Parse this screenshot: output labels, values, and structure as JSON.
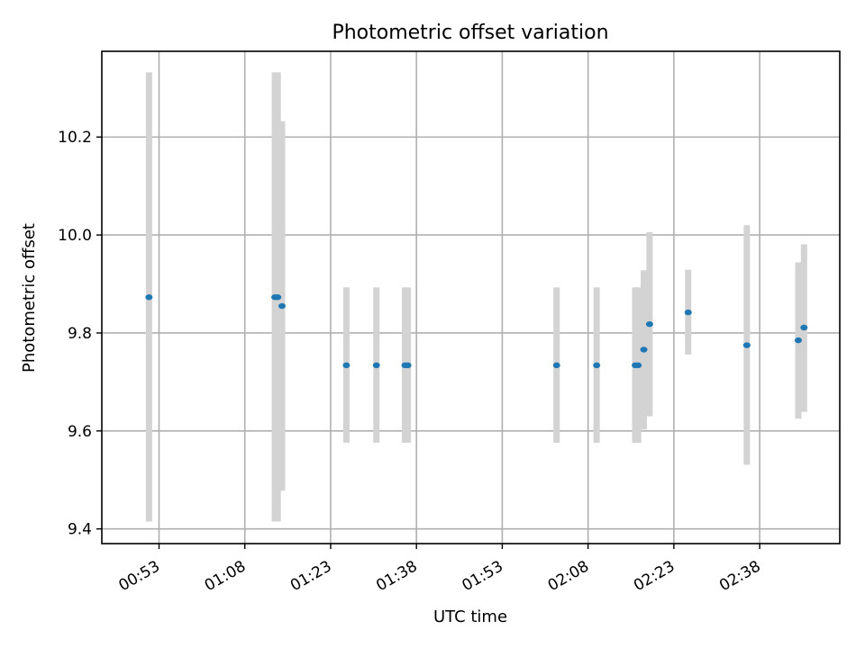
{
  "chart_data": {
    "type": "scatter",
    "title": "Photometric offset variation",
    "xlabel": "UTC time",
    "ylabel": "Photometric offset",
    "xlim": [
      "00:43",
      "02:52"
    ],
    "ylim": [
      9.37,
      10.375
    ],
    "grid": true,
    "x_ticks": [
      "00:53",
      "01:08",
      "01:23",
      "01:38",
      "01:53",
      "02:08",
      "02:23",
      "02:38"
    ],
    "y_ticks": [
      9.4,
      9.6,
      9.8,
      10.0,
      10.2
    ],
    "y_tick_labels": [
      "9.4",
      "9.6",
      "9.8",
      "10.0",
      "10.2"
    ],
    "points": [
      {
        "x": "00:51:15",
        "y": 9.873,
        "ylow": 9.415,
        "yhigh": 10.332
      },
      {
        "x": "01:13:15",
        "y": 9.873,
        "ylow": 9.415,
        "yhigh": 10.332
      },
      {
        "x": "01:13:45",
        "y": 9.873,
        "ylow": 9.415,
        "yhigh": 10.332
      },
      {
        "x": "01:14:30",
        "y": 9.855,
        "ylow": 9.478,
        "yhigh": 10.232
      },
      {
        "x": "01:25:45",
        "y": 9.734,
        "ylow": 9.576,
        "yhigh": 9.893
      },
      {
        "x": "01:31:00",
        "y": 9.734,
        "ylow": 9.576,
        "yhigh": 9.893
      },
      {
        "x": "01:36:00",
        "y": 9.734,
        "ylow": 9.576,
        "yhigh": 9.893
      },
      {
        "x": "01:36:30",
        "y": 9.734,
        "ylow": 9.576,
        "yhigh": 9.893
      },
      {
        "x": "02:02:30",
        "y": 9.734,
        "ylow": 9.576,
        "yhigh": 9.893
      },
      {
        "x": "02:09:30",
        "y": 9.734,
        "ylow": 9.576,
        "yhigh": 9.893
      },
      {
        "x": "02:16:15",
        "y": 9.734,
        "ylow": 9.576,
        "yhigh": 9.893
      },
      {
        "x": "02:16:45",
        "y": 9.734,
        "ylow": 9.576,
        "yhigh": 9.893
      },
      {
        "x": "02:17:45",
        "y": 9.766,
        "ylow": 9.603,
        "yhigh": 9.928
      },
      {
        "x": "02:18:45",
        "y": 9.818,
        "ylow": 9.63,
        "yhigh": 10.006
      },
      {
        "x": "02:25:30",
        "y": 9.842,
        "ylow": 9.756,
        "yhigh": 9.929
      },
      {
        "x": "02:35:45",
        "y": 9.775,
        "ylow": 9.531,
        "yhigh": 10.02
      },
      {
        "x": "02:44:45",
        "y": 9.785,
        "ylow": 9.625,
        "yhigh": 9.944
      },
      {
        "x": "02:45:45",
        "y": 9.811,
        "ylow": 9.639,
        "yhigh": 9.981
      }
    ],
    "colors": {
      "marker": "#1f77b4",
      "errorbar": "#d3d3d3",
      "grid": "#b0b0b0"
    }
  }
}
